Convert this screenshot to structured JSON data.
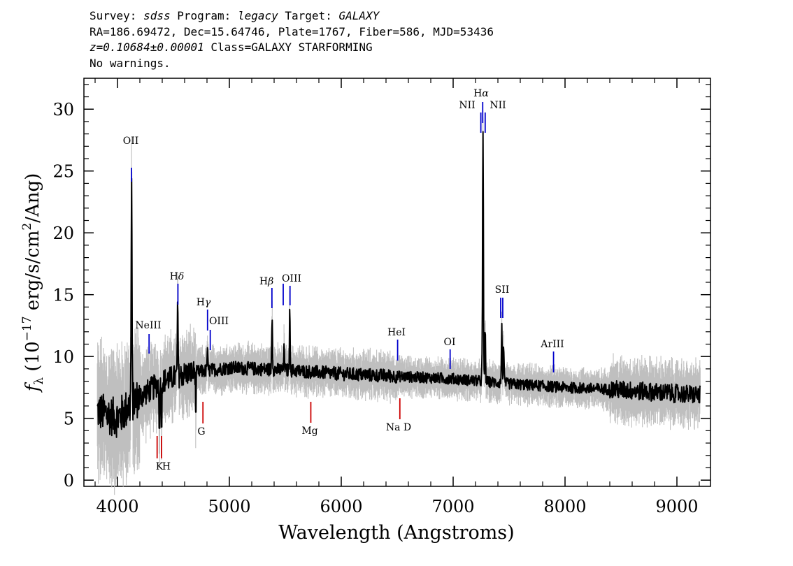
{
  "header": {
    "survey_label": "Survey:",
    "survey": "sdss",
    "program_label": "Program:",
    "program": "legacy",
    "target_label": "Target:",
    "target": "GALAXY",
    "line2": "RA=186.69472, Dec=15.64746, Plate=1767, Fiber=586, MJD=53436",
    "redshift": "z=0.10684±0.00001",
    "class_text": "Class=GALAXY STARFORMING",
    "warnings": "No warnings."
  },
  "colors": {
    "flux": "#000000",
    "error_band": "#bfbfbf",
    "emission_marker": "#0000cc",
    "absorption_marker": "#cc0000"
  },
  "chart_data": {
    "type": "line",
    "xlabel": "Wavelength (Angstroms)",
    "ylabel_parts": {
      "f": "f",
      "sub": "λ",
      "pre": "(10",
      "exp": "−17",
      "mid": "erg/s/cm",
      "exp2": "2",
      "post": "/Ang)"
    },
    "xlim": [
      3700,
      9300
    ],
    "ylim": [
      -0.5,
      32.5
    ],
    "xticks": [
      4000,
      5000,
      6000,
      7000,
      8000,
      9000
    ],
    "yticks": [
      0,
      5,
      10,
      15,
      20,
      25,
      30
    ],
    "xrange_data": [
      3820,
      9210
    ],
    "continuum_anchors": {
      "x": [
        3820,
        4000,
        4150,
        4400,
        4600,
        5000,
        5500,
        6000,
        6500,
        7000,
        7500,
        8000,
        8500,
        9000,
        9210
      ],
      "y": [
        5.6,
        5.0,
        6.4,
        8.0,
        8.6,
        9.1,
        8.9,
        8.6,
        8.4,
        8.2,
        7.8,
        7.5,
        7.3,
        7.0,
        6.9
      ]
    },
    "emission_peaks": [
      {
        "x": 4126,
        "y": 24.1
      },
      {
        "x": 4538,
        "y": 13.7
      },
      {
        "x": 4803,
        "y": 10.4
      },
      {
        "x": 5382,
        "y": 13.4
      },
      {
        "x": 5540,
        "y": 13.5
      },
      {
        "x": 5490,
        "y": 10.8
      },
      {
        "x": 7261,
        "y": 9.8
      },
      {
        "x": 7267,
        "y": 27.6
      },
      {
        "x": 7286,
        "y": 12.0
      },
      {
        "x": 7435,
        "y": 12.3
      },
      {
        "x": 7451,
        "y": 10.8
      }
    ],
    "line_labels": [
      {
        "text": "OII",
        "x": 3727,
        "type": "emission"
      },
      {
        "text": "NeIII",
        "x": 3869,
        "type": "emission"
      },
      {
        "text": "Hδ",
        "x": 4102,
        "type": "emission"
      },
      {
        "text": "Hγ",
        "x": 4341,
        "type": "emission"
      },
      {
        "text": "OIII",
        "x": 4363,
        "type": "emission"
      },
      {
        "text": "Hβ",
        "x": 4861,
        "type": "emission"
      },
      {
        "text": "OIII",
        "x": 5007,
        "type": "emission"
      },
      {
        "text": "HeI",
        "x": 5876,
        "type": "emission"
      },
      {
        "text": "OI",
        "x": 6300,
        "type": "emission"
      },
      {
        "text": "NII",
        "x": 6548,
        "type": "emission"
      },
      {
        "text": "Hα",
        "x": 6563,
        "type": "emission"
      },
      {
        "text": "NII",
        "x": 6583,
        "type": "emission"
      },
      {
        "text": "SII",
        "x": 6725,
        "type": "emission"
      },
      {
        "text": "ArIII",
        "x": 7135,
        "type": "emission"
      },
      {
        "text": "K",
        "x": 3934,
        "type": "absorption"
      },
      {
        "text": "H",
        "x": 3969,
        "type": "absorption"
      },
      {
        "text": "G",
        "x": 4304,
        "type": "absorption"
      },
      {
        "text": "Mg",
        "x": 5175,
        "type": "absorption"
      },
      {
        "text": "Na D",
        "x": 5894,
        "type": "absorption"
      }
    ]
  }
}
